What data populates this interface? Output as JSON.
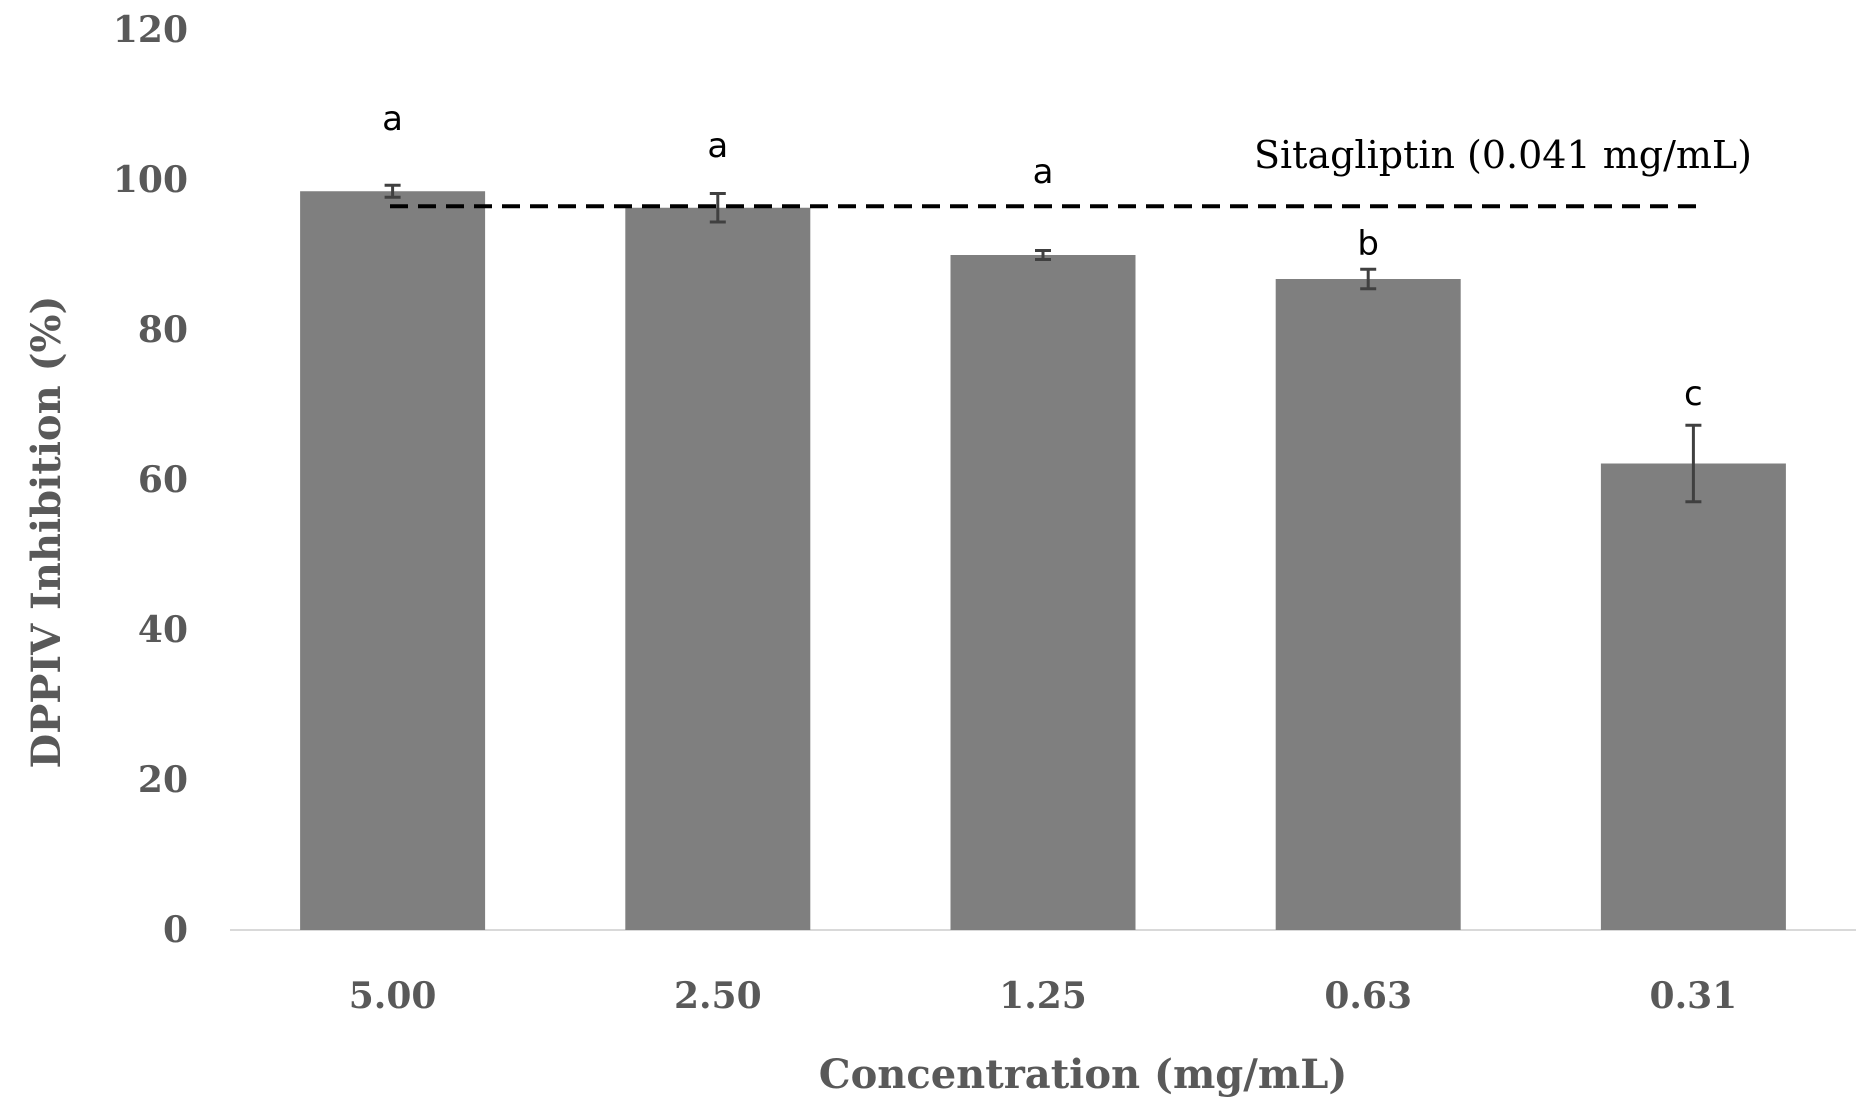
{
  "chart_data": {
    "type": "bar",
    "title": "",
    "xlabel": "Concentration (mg/mL)",
    "ylabel": "DPPIV Inhibition (%)",
    "ylim": [
      0,
      120
    ],
    "yticks": [
      "0",
      "20",
      "40",
      "60",
      "80",
      "100",
      "120"
    ],
    "categories": [
      "5.00",
      "2.50",
      "1.25",
      "0.63",
      "0.31"
    ],
    "series": [
      {
        "name": "DPPIV Inhibition",
        "values": [
          98.5,
          96.3,
          90.0,
          86.8,
          62.2
        ],
        "errors": [
          0.8,
          1.9,
          0.6,
          1.3,
          5.1
        ],
        "significance": [
          "a",
          "a",
          "a",
          "b",
          "c"
        ]
      }
    ],
    "reference_line": {
      "label": "Sitagliptin (0.041 mg/mL)",
      "value": 96.5,
      "style": "dashed"
    },
    "grid": false,
    "legend": "none",
    "colors": {
      "bar": "#7f7f7f",
      "error_bar": "#404040",
      "reference": "#000000",
      "axis": "#d9d9d9",
      "tick_text": "#595959"
    }
  }
}
